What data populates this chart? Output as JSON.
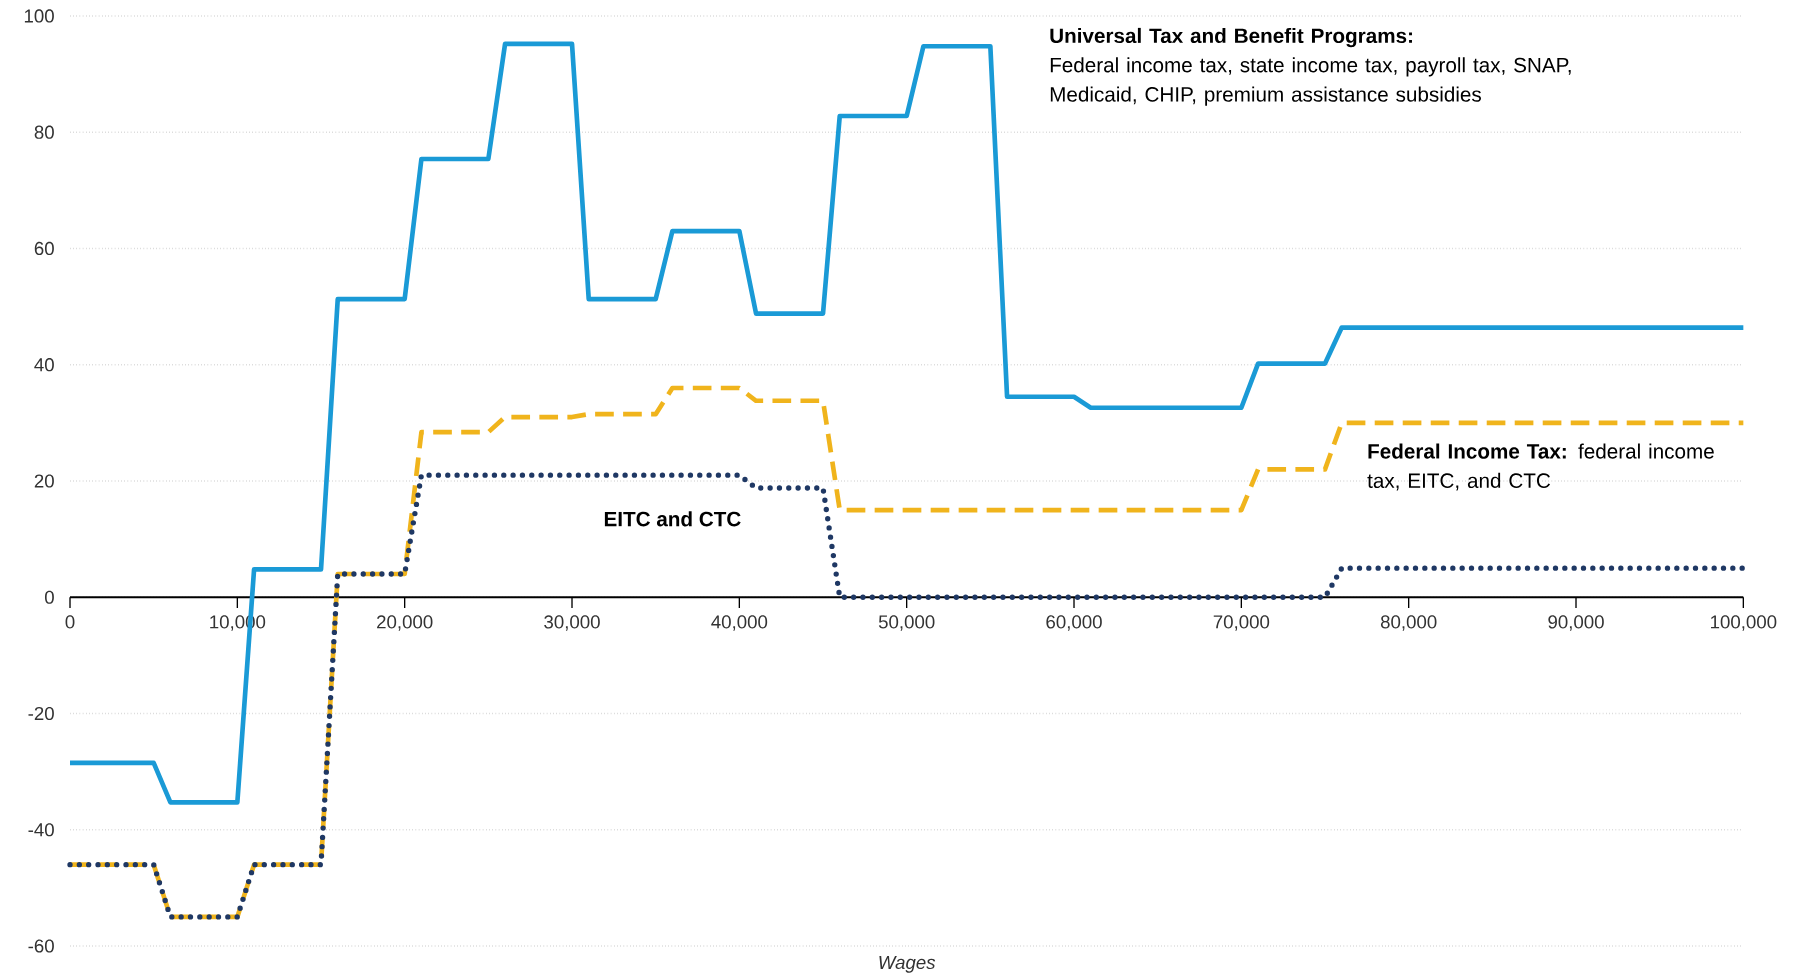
{
  "chart_data": {
    "type": "line",
    "xlabel": "Wages",
    "xlim": [
      0,
      100000
    ],
    "ylim": [
      -60,
      100
    ],
    "xticks": [
      0,
      {
        "value": 10000,
        "label": "10,000"
      },
      {
        "value": 20000,
        "label": "20,000"
      },
      {
        "value": 30000,
        "label": "30,000"
      },
      {
        "value": 40000,
        "label": "40,000"
      },
      {
        "value": 50000,
        "label": "50,000"
      },
      {
        "value": 60000,
        "label": "60,000"
      },
      {
        "value": 70000,
        "label": "70,000"
      },
      {
        "value": 80000,
        "label": "80,000"
      },
      {
        "value": 90000,
        "label": "90,000"
      },
      {
        "value": 100000,
        "label": "100,000"
      }
    ],
    "yticks": [
      -60,
      -40,
      -20,
      0,
      20,
      40,
      60,
      80,
      100
    ],
    "grid": "y",
    "legend": false,
    "marker": "none",
    "annotations": [
      "Federal income tax, state income tax, payroll tax, SNAP, Medicaid, CHIP, premium assistance subsidies",
      "federal income tax, EITC, and CTC"
    ],
    "series": [
      {
        "name": "Universal Tax and Benefit Programs:",
        "color": "#1a9ad6",
        "line_style": "solid",
        "x": [
          0,
          5000,
          6000,
          10000,
          11000,
          15000,
          16000,
          20000,
          21000,
          25000,
          26000,
          30000,
          31000,
          35000,
          36000,
          40000,
          41000,
          45000,
          46000,
          50000,
          51000,
          55000,
          56000,
          60000,
          61000,
          70000,
          71000,
          75000,
          76000,
          100000
        ],
        "values": [
          -28.5,
          -28.5,
          -35.3,
          -35.3,
          4.8,
          4.8,
          51.3,
          51.3,
          75.4,
          75.4,
          95.2,
          95.2,
          51.3,
          51.3,
          63,
          63,
          48.8,
          48.8,
          82.8,
          82.8,
          94.8,
          94.8,
          34.5,
          34.5,
          32.6,
          32.6,
          40.2,
          40.2,
          46.4,
          46.4
        ]
      },
      {
        "name": "Federal Income Tax:",
        "color": "#f0b41c",
        "line_style": "dashed",
        "x": [
          0,
          5000,
          6000,
          10000,
          11000,
          15000,
          16000,
          20000,
          21000,
          25000,
          26000,
          30000,
          31000,
          35000,
          36000,
          40000,
          41000,
          45000,
          46000,
          70000,
          71000,
          75000,
          76000,
          100000
        ],
        "values": [
          -46,
          -46,
          -55,
          -55,
          -46,
          -46,
          4,
          4,
          28.4,
          28.4,
          31,
          31,
          31.5,
          31.5,
          36,
          36,
          33.8,
          33.8,
          15,
          15,
          22,
          22,
          30,
          30
        ]
      },
      {
        "name": "EITC and CTC",
        "color": "#1f3864",
        "line_style": "dotted",
        "x": [
          0,
          5000,
          6000,
          10000,
          11000,
          15000,
          16000,
          20000,
          21000,
          40000,
          41000,
          45000,
          46000,
          75000,
          76000,
          100000
        ],
        "values": [
          -46,
          -46,
          -55,
          -55,
          -46,
          -46,
          4,
          4,
          21,
          21,
          18.8,
          18.8,
          0,
          0,
          5,
          5
        ]
      }
    ]
  }
}
